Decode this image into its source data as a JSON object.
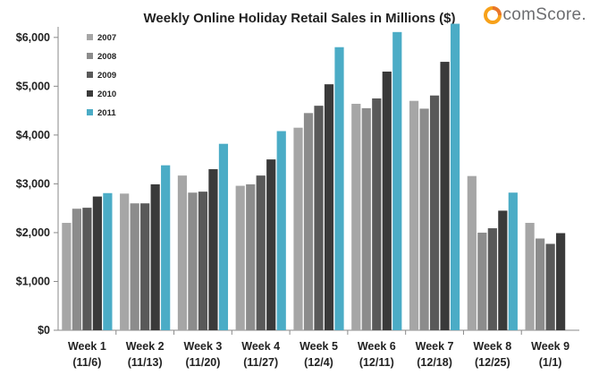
{
  "brand": {
    "name": "comScore."
  },
  "chart_data": {
    "type": "bar",
    "title": "Weekly Online Holiday Retail Sales in Millions ($)",
    "categories": [
      [
        "Week 1",
        "(11/6)"
      ],
      [
        "Week 2",
        "(11/13)"
      ],
      [
        "Week 3",
        "(11/20)"
      ],
      [
        "Week 4",
        "(11/27)"
      ],
      [
        "Week 5",
        "(12/4)"
      ],
      [
        "Week 6",
        "(12/11)"
      ],
      [
        "Week 7",
        "(12/18)"
      ],
      [
        "Week 8",
        "(12/25)"
      ],
      [
        "Week 9",
        "(1/1)"
      ]
    ],
    "series": [
      {
        "name": "2007",
        "color": "#a6a6a6",
        "values": [
          2200,
          2800,
          3170,
          2960,
          4150,
          4640,
          4700,
          3160,
          2200
        ]
      },
      {
        "name": "2008",
        "color": "#8c8c8c",
        "values": [
          2490,
          2600,
          2820,
          2990,
          4450,
          4550,
          4540,
          2000,
          1880
        ]
      },
      {
        "name": "2009",
        "color": "#595959",
        "values": [
          2510,
          2600,
          2840,
          3170,
          4600,
          4750,
          4810,
          2090,
          1770
        ]
      },
      {
        "name": "2010",
        "color": "#3a3a3a",
        "values": [
          2740,
          2990,
          3300,
          3500,
          5040,
          5300,
          5500,
          2450,
          1990
        ]
      },
      {
        "name": "2011",
        "color": "#4bacc6",
        "values": [
          2810,
          3380,
          3820,
          4080,
          5800,
          6110,
          6280,
          2820,
          null
        ]
      }
    ],
    "yticks": [
      "$0",
      "$1,000",
      "$2,000",
      "$3,000",
      "$4,000",
      "$5,000",
      "$6,000"
    ],
    "ylim": [
      0,
      6400
    ],
    "grid": false,
    "legend": "top-left"
  }
}
